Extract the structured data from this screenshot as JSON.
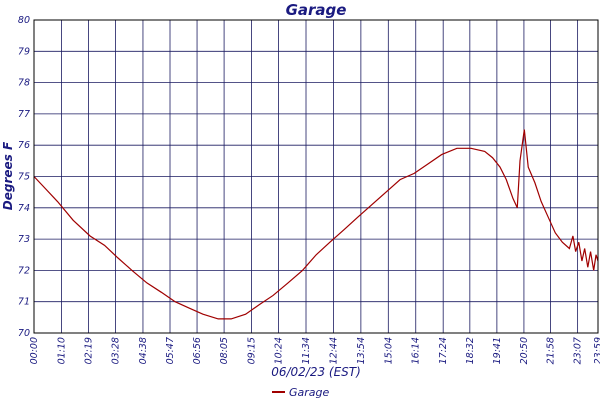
{
  "chart_data": {
    "type": "line",
    "title": "Garage",
    "xlabel": "06/02/23 (EST)",
    "ylabel": "Degrees F",
    "x": [
      0,
      30,
      60,
      100,
      143,
      180,
      214,
      250,
      288,
      325,
      360,
      395,
      431,
      470,
      503,
      540,
      574,
      610,
      648,
      685,
      720,
      755,
      791,
      826,
      862,
      898,
      934,
      970,
      1005,
      1040,
      1079,
      1115,
      1150,
      1170,
      1189,
      1205,
      1222,
      1233,
      1240,
      1251,
      1261,
      1278,
      1294,
      1312,
      1330,
      1348,
      1366,
      1375,
      1382,
      1390,
      1398,
      1405,
      1413,
      1420,
      1428,
      1434,
      1439
    ],
    "series": [
      {
        "name": "Garage",
        "color": "#a00000",
        "values": [
          75.0,
          74.6,
          74.2,
          73.6,
          73.1,
          72.8,
          72.4,
          72.0,
          71.6,
          71.3,
          71.0,
          70.8,
          70.6,
          70.45,
          70.45,
          70.6,
          70.9,
          71.2,
          71.6,
          72.0,
          72.5,
          72.9,
          73.3,
          73.7,
          74.1,
          74.5,
          74.9,
          75.1,
          75.4,
          75.7,
          75.9,
          75.9,
          75.8,
          75.6,
          75.3,
          74.9,
          74.3,
          74.0,
          75.5,
          76.5,
          75.3,
          74.8,
          74.2,
          73.7,
          73.2,
          72.9,
          72.7,
          73.1,
          72.6,
          72.9,
          72.3,
          72.7,
          72.1,
          72.6,
          72.0,
          72.5,
          72.3
        ]
      }
    ],
    "xlim": [
      0,
      1439
    ],
    "xticks": [
      {
        "value": 0,
        "label": "00:00"
      },
      {
        "value": 70,
        "label": "01:10"
      },
      {
        "value": 139,
        "label": "02:19"
      },
      {
        "value": 208,
        "label": "03:28"
      },
      {
        "value": 278,
        "label": "04:38"
      },
      {
        "value": 347,
        "label": "05:47"
      },
      {
        "value": 416,
        "label": "06:56"
      },
      {
        "value": 485,
        "label": "08:05"
      },
      {
        "value": 555,
        "label": "09:15"
      },
      {
        "value": 624,
        "label": "10:24"
      },
      {
        "value": 694,
        "label": "11:34"
      },
      {
        "value": 764,
        "label": "12:44"
      },
      {
        "value": 834,
        "label": "13:54"
      },
      {
        "value": 904,
        "label": "15:04"
      },
      {
        "value": 974,
        "label": "16:14"
      },
      {
        "value": 1044,
        "label": "17:24"
      },
      {
        "value": 1112,
        "label": "18:32"
      },
      {
        "value": 1181,
        "label": "19:41"
      },
      {
        "value": 1250,
        "label": "20:50"
      },
      {
        "value": 1318,
        "label": "21:58"
      },
      {
        "value": 1387,
        "label": "23:07"
      },
      {
        "value": 1439,
        "label": "23:59"
      }
    ],
    "ylim": [
      70,
      80
    ],
    "yticks": [
      70,
      71,
      72,
      73,
      74,
      75,
      76,
      77,
      78,
      79,
      80
    ],
    "grid": true,
    "legend": "bottom"
  }
}
